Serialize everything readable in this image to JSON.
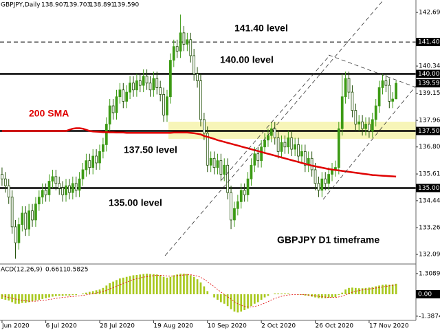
{
  "chart_data": {
    "type": "candlestick",
    "header": {
      "symbol": "GBPJPY,Daily",
      "ohlc": [
        "138.907",
        "139.703",
        "138.891",
        "139.590"
      ]
    },
    "up_color": "#3c9a14",
    "down_color": "#1f4d05",
    "open": [
      135.6,
      135.4,
      135.1,
      134.6,
      133.3,
      132.6,
      133.4,
      133.9,
      133.2,
      134.0,
      133.6,
      134.3,
      134.6,
      134.9,
      134.7,
      135.3,
      135.5,
      135.2,
      135.0,
      134.7,
      135.1,
      134.8,
      135.2,
      134.9,
      135.4,
      135.8,
      136.2,
      135.9,
      136.4,
      136.1,
      136.6,
      136.9,
      137.8,
      138.6,
      138.3,
      139.0,
      139.3,
      138.8,
      139.2,
      139.6,
      139.3,
      139.7,
      139.5,
      139.9,
      139.6,
      139.3,
      139.8,
      139.4,
      139.1,
      138.2,
      139.0,
      140.6,
      141.2,
      141.0,
      141.8,
      141.3,
      141.5,
      140.8,
      140.0,
      139.7,
      138.0,
      137.4,
      136.0,
      136.3,
      135.9,
      136.2,
      135.6,
      136.0,
      134.8,
      133.6,
      134.1,
      134.4,
      134.9,
      134.7,
      135.4,
      136.0,
      136.5,
      136.2,
      136.8,
      137.1,
      137.3,
      137.6,
      137.2,
      136.6,
      137.0,
      136.8,
      137.2,
      136.7,
      136.9,
      136.4,
      136.6,
      136.0,
      136.3,
      135.8,
      135.2,
      134.9,
      135.4,
      135.2,
      135.6,
      135.8,
      135.9,
      137.6,
      139.0,
      139.8,
      139.2,
      138.4,
      137.8,
      137.9,
      137.6,
      137.8,
      137.5,
      138.0,
      138.6,
      139.4,
      139.7,
      139.5,
      138.8,
      138.907
    ],
    "high": [
      135.9,
      135.7,
      135.4,
      134.9,
      133.6,
      133.7,
      134.2,
      134.2,
      134.3,
      134.3,
      134.6,
      134.9,
      135.2,
      135.2,
      135.6,
      135.8,
      135.8,
      135.5,
      135.3,
      135.4,
      135.4,
      135.5,
      135.5,
      135.7,
      136.1,
      136.5,
      136.5,
      136.7,
      136.7,
      136.9,
      137.2,
      138.1,
      138.9,
      138.9,
      139.3,
      139.6,
      139.6,
      139.5,
      139.9,
      139.9,
      140.0,
      140.0,
      140.2,
      140.2,
      139.9,
      140.1,
      140.1,
      139.7,
      139.4,
      139.3,
      140.9,
      141.5,
      141.5,
      142.6,
      142.1,
      141.8,
      141.8,
      141.1,
      140.3,
      140.0,
      138.3,
      137.7,
      136.6,
      136.6,
      136.5,
      136.5,
      136.3,
      136.3,
      135.1,
      134.4,
      134.7,
      135.2,
      135.2,
      135.7,
      136.3,
      136.8,
      136.8,
      137.1,
      137.4,
      137.6,
      137.9,
      137.9,
      137.5,
      137.3,
      137.3,
      137.5,
      137.5,
      137.2,
      137.2,
      136.9,
      136.9,
      136.6,
      136.6,
      136.1,
      135.5,
      135.7,
      135.7,
      135.9,
      136.1,
      136.2,
      137.9,
      140.0,
      140.1,
      140.1,
      139.5,
      138.7,
      138.2,
      138.2,
      138.1,
      138.1,
      138.3,
      138.9,
      139.7,
      140.0,
      140.0,
      139.8,
      139.2,
      139.703
    ],
    "low": [
      135.1,
      134.8,
      134.3,
      133.0,
      131.9,
      132.3,
      133.1,
      132.9,
      132.9,
      133.3,
      133.3,
      134.0,
      134.3,
      134.4,
      134.4,
      135.0,
      134.9,
      134.7,
      134.4,
      134.4,
      134.5,
      134.5,
      134.6,
      134.6,
      135.1,
      135.5,
      135.6,
      135.6,
      135.8,
      135.8,
      136.3,
      136.6,
      137.5,
      138.0,
      138.0,
      138.7,
      138.5,
      138.5,
      138.9,
      139.0,
      139.0,
      139.2,
      139.2,
      139.3,
      139.0,
      139.0,
      139.1,
      138.8,
      137.9,
      137.9,
      138.7,
      140.3,
      140.7,
      140.7,
      141.0,
      141.0,
      140.5,
      139.7,
      139.4,
      137.7,
      137.1,
      135.7,
      135.7,
      135.6,
      135.6,
      135.3,
      135.3,
      134.5,
      133.2,
      133.3,
      133.8,
      134.1,
      134.4,
      134.4,
      135.1,
      135.7,
      135.9,
      135.9,
      136.5,
      136.8,
      137.0,
      136.9,
      136.3,
      136.3,
      136.5,
      136.5,
      136.4,
      136.4,
      136.1,
      136.1,
      135.7,
      135.7,
      135.5,
      134.9,
      134.6,
      134.6,
      134.9,
      134.9,
      135.3,
      135.5,
      135.6,
      137.3,
      138.7,
      138.9,
      138.1,
      137.5,
      137.5,
      137.3,
      137.3,
      137.2,
      137.2,
      137.7,
      138.3,
      139.1,
      139.2,
      138.5,
      138.5,
      138.891
    ],
    "close": [
      135.4,
      135.1,
      134.6,
      133.3,
      132.6,
      133.4,
      133.9,
      133.2,
      134.0,
      133.6,
      134.3,
      134.6,
      134.9,
      134.7,
      135.3,
      135.5,
      135.2,
      135.0,
      134.7,
      135.1,
      134.8,
      135.2,
      134.9,
      135.4,
      135.8,
      136.2,
      135.9,
      136.4,
      136.1,
      136.6,
      136.9,
      137.8,
      138.6,
      138.3,
      139.0,
      139.3,
      138.8,
      139.2,
      139.6,
      139.3,
      139.7,
      139.5,
      139.9,
      139.6,
      139.3,
      139.8,
      139.4,
      139.1,
      138.2,
      139.0,
      140.6,
      141.2,
      141.0,
      141.8,
      141.3,
      141.5,
      140.8,
      140.0,
      139.7,
      138.0,
      137.4,
      136.0,
      136.3,
      135.9,
      136.2,
      135.6,
      136.0,
      134.8,
      133.6,
      134.1,
      134.4,
      134.9,
      134.7,
      135.4,
      136.0,
      136.5,
      136.2,
      136.8,
      137.1,
      137.3,
      137.6,
      137.2,
      136.6,
      137.0,
      136.8,
      137.2,
      136.7,
      136.9,
      136.4,
      136.6,
      136.0,
      136.3,
      135.8,
      135.2,
      134.9,
      135.4,
      135.2,
      135.6,
      135.8,
      135.9,
      137.6,
      139.0,
      139.8,
      139.2,
      138.4,
      137.8,
      137.9,
      137.6,
      137.8,
      137.5,
      138.0,
      138.6,
      139.4,
      139.7,
      139.5,
      138.8,
      138.9,
      139.59
    ],
    "sma": {
      "color": "#e00000",
      "values": [
        137.5,
        137.5,
        137.5,
        137.5,
        137.5,
        137.5,
        137.5,
        137.5,
        137.5,
        137.5,
        137.5,
        137.5,
        137.5,
        137.5,
        137.5,
        137.5,
        137.5,
        137.5,
        137.5,
        137.5,
        137.55,
        137.6,
        137.62,
        137.62,
        137.6,
        137.55,
        137.5,
        137.48,
        137.47,
        137.46,
        137.45,
        137.45,
        137.44,
        137.44,
        137.43,
        137.43,
        137.43,
        137.42,
        137.42,
        137.42,
        137.42,
        137.42,
        137.42,
        137.42,
        137.42,
        137.42,
        137.42,
        137.42,
        137.42,
        137.42,
        137.42,
        137.43,
        137.43,
        137.43,
        137.43,
        137.43,
        137.42,
        137.4,
        137.38,
        137.35,
        137.28,
        137.24,
        137.2,
        137.15,
        137.1,
        137.06,
        137.02,
        136.98,
        136.94,
        136.9,
        136.86,
        136.82,
        136.78,
        136.74,
        136.7,
        136.66,
        136.62,
        136.58,
        136.54,
        136.5,
        136.46,
        136.42,
        136.38,
        136.34,
        136.3,
        136.26,
        136.22,
        136.18,
        136.14,
        136.1,
        136.06,
        136.02,
        135.98,
        135.95,
        135.92,
        135.89,
        135.86,
        135.83,
        135.81,
        135.79,
        135.77,
        135.75,
        135.73,
        135.71,
        135.69,
        135.67,
        135.65,
        135.63,
        135.61,
        135.59,
        135.57,
        135.56,
        135.55,
        135.54,
        135.53,
        135.52,
        135.51,
        135.5
      ]
    },
    "xlim": [
      -0.6,
      122.9
    ],
    "xticks": [
      {
        "value": 0,
        "label": "Jun 2020"
      },
      {
        "value": 13,
        "label": "6 Jul 2020"
      },
      {
        "value": 29,
        "label": "28 Jul 2020"
      },
      {
        "value": 45,
        "label": "19 Aug 2020"
      },
      {
        "value": 61,
        "label": "10 Sep 2020"
      },
      {
        "value": 77,
        "label": "2 Oct 2020"
      },
      {
        "value": 93,
        "label": "26 Oct 2020"
      },
      {
        "value": 109,
        "label": "17 Nov 2020"
      }
    ],
    "ylim": [
      131.73,
      143.24
    ],
    "yticks": [
      142.695,
      140.345,
      139.155,
      137.965,
      {
        "value": 136.8,
        "label": "136.800"
      },
      135.615,
      134.445,
      {
        "value": 133.26,
        "label": "133.260"
      },
      {
        "value": 132.09,
        "label": "132.090"
      }
    ],
    "levels": [
      {
        "value": 141.4,
        "label": "141.400",
        "style": "dashed"
      },
      {
        "value": 140,
        "label": "140.000",
        "style": "solid"
      },
      {
        "value": 137.5,
        "label": "137.500",
        "style": "solid"
      },
      {
        "value": 135,
        "label": "135.000",
        "style": "solid"
      }
    ],
    "current_price": {
      "value": 139.59,
      "label": "139.590"
    },
    "annotations": {
      "level_1": "141.40 level",
      "level_2": "140.00 level",
      "sma": "200 SMA",
      "level_3": "137.50 level",
      "level_4": "135.00 level",
      "timeframe": "GBPJPY D1 timeframe"
    },
    "macd": {
      "header": {
        "name": "ACD(12,26,9)",
        "main": "0.6611",
        "signal": "0.5825"
      },
      "color": "#a8c81e",
      "signal_color": "#e00000",
      "ylim": [
        -1.61,
        1.74
      ],
      "yticks": [
        1.3089,
        {
          "value": 0,
          "label": "0.00"
        },
        -1.3874
      ],
      "values": [
        -0.3,
        -0.35,
        -0.4,
        -0.5,
        -0.6,
        -0.6,
        -0.55,
        -0.55,
        -0.5,
        -0.45,
        -0.4,
        -0.35,
        -0.3,
        -0.25,
        -0.2,
        -0.15,
        -0.12,
        -0.1,
        -0.1,
        -0.08,
        -0.08,
        -0.05,
        -0.05,
        0.0,
        0.05,
        0.1,
        0.15,
        0.2,
        0.25,
        0.3,
        0.4,
        0.55,
        0.7,
        0.8,
        0.9,
        1.0,
        1.05,
        1.1,
        1.15,
        1.2,
        1.22,
        1.25,
        1.28,
        1.3,
        1.28,
        1.27,
        1.25,
        1.2,
        1.1,
        1.05,
        1.1,
        1.2,
        1.25,
        1.3,
        1.3,
        1.28,
        1.2,
        1.1,
        0.95,
        0.75,
        0.5,
        0.2,
        0.0,
        -0.2,
        -0.35,
        -0.5,
        -0.6,
        -0.75,
        -0.95,
        -1.1,
        -1.15,
        -1.1,
        -1.0,
        -0.9,
        -0.75,
        -0.6,
        -0.5,
        -0.35,
        -0.2,
        -0.1,
        0.0,
        0.05,
        0.05,
        0.05,
        0.05,
        0.05,
        0.0,
        0.0,
        -0.02,
        -0.03,
        -0.08,
        -0.1,
        -0.15,
        -0.2,
        -0.25,
        -0.25,
        -0.25,
        -0.22,
        -0.2,
        -0.18,
        -0.05,
        0.1,
        0.3,
        0.4,
        0.42,
        0.4,
        0.38,
        0.38,
        0.4,
        0.42,
        0.45,
        0.5,
        0.55,
        0.6,
        0.62,
        0.6,
        0.62,
        0.6611
      ],
      "signal": [
        -0.1,
        -0.15,
        -0.2,
        -0.25,
        -0.3,
        -0.35,
        -0.4,
        -0.42,
        -0.44,
        -0.44,
        -0.44,
        -0.42,
        -0.4,
        -0.37,
        -0.33,
        -0.3,
        -0.26,
        -0.23,
        -0.2,
        -0.18,
        -0.16,
        -0.14,
        -0.12,
        -0.1,
        -0.07,
        -0.04,
        0.0,
        0.04,
        0.08,
        0.12,
        0.17,
        0.24,
        0.33,
        0.42,
        0.51,
        0.6,
        0.69,
        0.77,
        0.85,
        0.92,
        0.98,
        1.03,
        1.08,
        1.12,
        1.15,
        1.18,
        1.2,
        1.2,
        1.18,
        1.16,
        1.15,
        1.16,
        1.18,
        1.2,
        1.22,
        1.23,
        1.23,
        1.2,
        1.15,
        1.07,
        0.95,
        0.8,
        0.64,
        0.47,
        0.3,
        0.14,
        -0.01,
        -0.16,
        -0.31,
        -0.47,
        -0.6,
        -0.7,
        -0.77,
        -0.8,
        -0.8,
        -0.77,
        -0.72,
        -0.65,
        -0.56,
        -0.46,
        -0.36,
        -0.27,
        -0.19,
        -0.13,
        -0.08,
        -0.05,
        -0.03,
        -0.02,
        -0.02,
        -0.02,
        -0.03,
        -0.05,
        -0.07,
        -0.1,
        -0.13,
        -0.16,
        -0.18,
        -0.2,
        -0.2,
        -0.2,
        -0.17,
        -0.12,
        -0.04,
        0.05,
        0.13,
        0.19,
        0.24,
        0.27,
        0.3,
        0.33,
        0.36,
        0.39,
        0.42,
        0.46,
        0.5,
        0.53,
        0.56,
        0.5825
      ]
    }
  }
}
